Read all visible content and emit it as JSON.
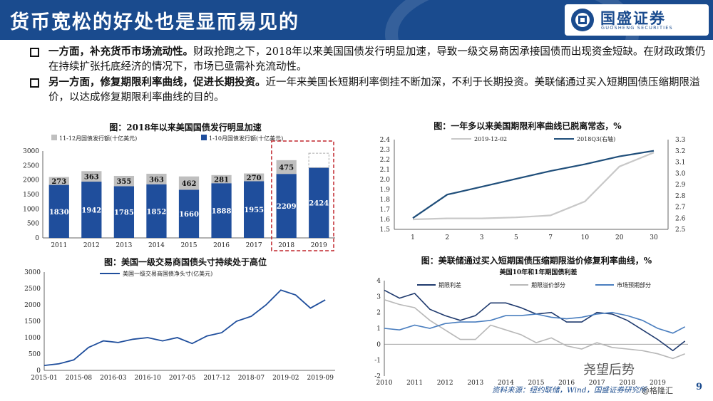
{
  "header": {
    "title": "货币宽松的好处也是显而易见的",
    "logo_text": "国盛证券",
    "logo_sub": "GUOSHENG SECURITIES"
  },
  "bullets": [
    {
      "bold": "一方面，补充货币市场流动性。",
      "text": "财政抢跑之下，2018年以来美国国债发行明显加速，导致一级交易商因承接国债而出现资金短缺。在财政政策仍在持续扩张托底经济的情况下，市场已亟需补充流动性。"
    },
    {
      "bold": "另一方面，修复期限利率曲线，促进长期投资。",
      "text": "近一年来美国长短期利率倒挂不断加深，不利于长期投资。美联储通过买入短期国债压缩期限溢价，以达成修复期限利率曲线的目的。"
    }
  ],
  "footer": {
    "source": "资料来源：纽约联储，Wind，国盛证券研究所",
    "watermark": "尧望后势",
    "watermark2": "@格隆汇",
    "page": "9"
  },
  "chart_data": [
    {
      "type": "bar",
      "title": "图：2018年以来美国国债发行明显加速",
      "categories": [
        "2011",
        "2012",
        "2013",
        "2014",
        "2015",
        "2016",
        "2017",
        "2018",
        "2019"
      ],
      "series": [
        {
          "name": "1-10月国债发行额(十亿美元)",
          "values": [
            1830,
            1942,
            1785,
            1852,
            1660,
            1888,
            1955,
            2209,
            2424
          ],
          "color": "#1f4e9c"
        },
        {
          "name": "11-12月国债发行额(十亿美元)",
          "values": [
            273,
            363,
            355,
            363,
            462,
            281,
            270,
            475,
            null
          ],
          "color": "#bfbfbf"
        }
      ],
      "ylim": [
        0,
        3000
      ],
      "yticks": [
        0,
        500,
        1000,
        1500,
        2000,
        2500,
        3000
      ],
      "stacked": true,
      "highlight": [
        "2018",
        "2019"
      ]
    },
    {
      "type": "line",
      "title": "图：一年多以来美国期限利率曲线已脱离常态，%",
      "x": [
        "1",
        "2",
        "3",
        "5",
        "7",
        "10",
        "20",
        "30"
      ],
      "series": [
        {
          "name": "2019-12-02",
          "axis": "left",
          "color": "#c8c8c8",
          "values": [
            1.6,
            1.61,
            1.61,
            1.62,
            1.64,
            1.78,
            2.13,
            2.27
          ]
        },
        {
          "name": "2018Q3(右轴)",
          "axis": "right",
          "color": "#1f4e7a",
          "values": [
            2.6,
            2.81,
            2.88,
            2.95,
            3.02,
            3.08,
            3.15,
            3.2
          ]
        }
      ],
      "ylim_left": [
        1.5,
        2.4
      ],
      "yticks_left": [
        "1.5",
        "1.6",
        "1.7",
        "1.8",
        "1.9",
        "2.0",
        "2.1",
        "2.2",
        "2.3",
        "2.4"
      ],
      "ylim_right": [
        2.5,
        3.3
      ],
      "yticks_right": [
        "2.5",
        "2.6",
        "2.7",
        "2.8",
        "2.9",
        "3.0",
        "3.1",
        "3.2",
        "3.3"
      ]
    },
    {
      "type": "line",
      "title": "图：美国一级交易商国债头寸持续处于高位",
      "legend": "美国一级交易商国债净头寸(亿美元)",
      "x_ticks": [
        "2015-01",
        "2015-08",
        "2016-03",
        "2016-10",
        "2017-05",
        "2017-12",
        "2018-07",
        "2019-02",
        "2019-09"
      ],
      "series": [
        {
          "name": "美国一级交易商国债净头寸(亿美元)",
          "color": "#1f4e9c",
          "x": [
            "2015-01",
            "2015-04",
            "2015-07",
            "2015-10",
            "2016-01",
            "2016-04",
            "2016-07",
            "2016-10",
            "2017-01",
            "2017-04",
            "2017-07",
            "2017-10",
            "2018-01",
            "2018-04",
            "2018-07",
            "2018-10",
            "2019-01",
            "2019-04",
            "2019-07",
            "2019-10"
          ],
          "values": [
            150,
            200,
            320,
            700,
            900,
            850,
            950,
            1000,
            900,
            1000,
            820,
            1050,
            1150,
            1500,
            1650,
            2000,
            2450,
            2300,
            1900,
            2150
          ]
        }
      ],
      "ylim": [
        0,
        3000
      ],
      "yticks": [
        0,
        500,
        1000,
        1500,
        2000,
        2500,
        3000
      ]
    },
    {
      "type": "line",
      "title": "图：美联储通过买入短期国债压缩期限溢价修复利率曲线，%",
      "subtitle": "美国10年和1年期国债利差",
      "x_ticks": [
        "2010",
        "2011",
        "2012",
        "2013",
        "2014",
        "2015",
        "2016",
        "2017",
        "2018",
        "2019"
      ],
      "series": [
        {
          "name": "期限利差",
          "color": "#1f3a6e",
          "x": [
            2010,
            2010.5,
            2011,
            2011.5,
            2012,
            2012.5,
            2013,
            2013.5,
            2014,
            2014.5,
            2015,
            2015.5,
            2016,
            2016.5,
            2017,
            2017.5,
            2018,
            2018.5,
            2019,
            2019.5,
            2019.9
          ],
          "values": [
            3.4,
            2.9,
            3.2,
            2.2,
            1.8,
            1.5,
            1.8,
            2.6,
            2.6,
            2.3,
            1.9,
            2.0,
            1.4,
            1.4,
            2.0,
            1.9,
            1.5,
            0.9,
            0.3,
            -0.4,
            0.2
          ]
        },
        {
          "name": "期限溢价部分",
          "color": "#b8b8b8",
          "x": [
            2010,
            2010.5,
            2011,
            2011.5,
            2012,
            2012.5,
            2013,
            2013.5,
            2014,
            2014.5,
            2015,
            2015.5,
            2016,
            2016.5,
            2017,
            2017.5,
            2018,
            2018.5,
            2019,
            2019.5,
            2019.9
          ],
          "values": [
            2.8,
            2.5,
            2.3,
            1.5,
            0.9,
            0.3,
            0.3,
            1.2,
            0.9,
            0.6,
            0.1,
            0.4,
            -0.1,
            -0.3,
            0.1,
            -0.2,
            -0.3,
            -0.4,
            -0.6,
            -0.9,
            -0.6
          ]
        },
        {
          "name": "市场预期部分",
          "color": "#4a7ebf",
          "x": [
            2010,
            2010.5,
            2011,
            2011.5,
            2012,
            2012.5,
            2013,
            2013.5,
            2014,
            2014.5,
            2015,
            2015.5,
            2016,
            2016.5,
            2017,
            2017.5,
            2018,
            2018.5,
            2019,
            2019.5,
            2019.9
          ],
          "values": [
            1.0,
            0.9,
            1.2,
            1.0,
            1.3,
            1.4,
            1.4,
            1.5,
            1.8,
            1.8,
            1.9,
            1.7,
            1.6,
            1.7,
            1.9,
            2.0,
            1.8,
            1.5,
            1.0,
            0.7,
            1.1
          ]
        }
      ],
      "ylim": [
        -2,
        4
      ],
      "yticks": [
        "-2",
        "-1",
        "0",
        "1",
        "2",
        "3",
        "4"
      ]
    }
  ]
}
